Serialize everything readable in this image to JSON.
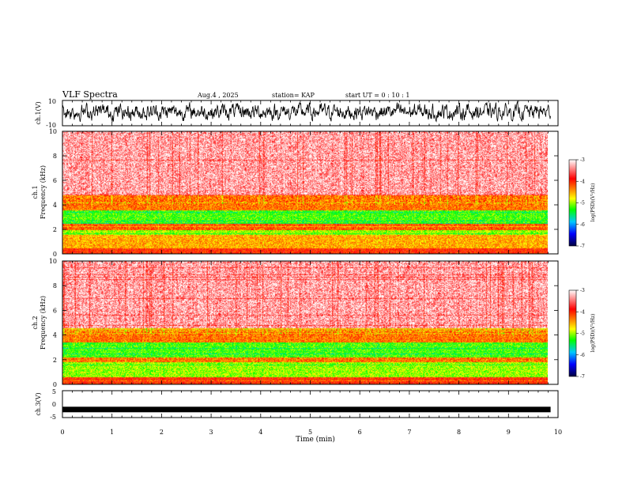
{
  "header": {
    "title": "VLF Spectra",
    "date": "Aug.4 , 2025",
    "station": "station= KAP",
    "start_ut": "start UT = 0 : 10 : 1"
  },
  "colors": {
    "spectrogram_high": "#ff2a2a",
    "spectrogram_mid": "#ff8000",
    "spectrogram_yellow": "#f4e21c",
    "spectrogram_green": "#34e63a",
    "trace": "#000000"
  },
  "chart_data": [
    {
      "type": "line",
      "name": "ch1-waveform",
      "ylabel": "ch.1(V)",
      "ylim": [
        -10,
        10
      ],
      "yticks": [
        "10",
        "-10"
      ],
      "xlim": [
        0,
        10
      ],
      "description_values": "noisy waveform oscillating approximately between -6 and 8 V"
    },
    {
      "type": "heatmap",
      "name": "ch1-spectrogram",
      "ylabel_top": "ch.1",
      "ylabel": "Frequency (kHz)",
      "ylim": [
        0,
        10
      ],
      "yticks": [
        "0",
        "2",
        "4",
        "6",
        "8",
        "10"
      ],
      "xlim": [
        0,
        10
      ],
      "data_end_min": 9.85,
      "colorbar": {
        "label": "log(PSD)(V²/Hz)",
        "range": [
          -7,
          -3
        ],
        "ticks": [
          "-3",
          "-4",
          "-5",
          "-6",
          "-7"
        ]
      },
      "bands": [
        {
          "from_khz": 0.0,
          "to_khz": 0.5,
          "log_psd": -4.0
        },
        {
          "from_khz": 0.5,
          "to_khz": 1.6,
          "log_psd": -4.5
        },
        {
          "from_khz": 1.6,
          "to_khz": 2.0,
          "log_psd": -5.0
        },
        {
          "from_khz": 2.0,
          "to_khz": 2.5,
          "log_psd": -4.2
        },
        {
          "from_khz": 2.5,
          "to_khz": 3.6,
          "log_psd": -5.2
        },
        {
          "from_khz": 3.6,
          "to_khz": 4.8,
          "log_psd": -4.3
        },
        {
          "from_khz": 4.8,
          "to_khz": 10.0,
          "log_psd": -3.3
        }
      ]
    },
    {
      "type": "heatmap",
      "name": "ch2-spectrogram",
      "ylabel_top": "ch.2",
      "ylabel": "Frequency (kHz)",
      "ylim": [
        0,
        10
      ],
      "yticks": [
        "0",
        "2",
        "4",
        "6",
        "8",
        "10"
      ],
      "xlim": [
        0,
        10
      ],
      "data_end_min": 9.85,
      "colorbar": {
        "label": "log(PSD)(V²/Hz)",
        "range": [
          -7,
          -3
        ],
        "ticks": [
          "-3",
          "-4",
          "-5",
          "-6",
          "-7"
        ]
      },
      "bands": [
        {
          "from_khz": 0.0,
          "to_khz": 0.6,
          "log_psd": -4.0
        },
        {
          "from_khz": 0.6,
          "to_khz": 1.8,
          "log_psd": -5.0
        },
        {
          "from_khz": 1.8,
          "to_khz": 2.2,
          "log_psd": -4.3
        },
        {
          "from_khz": 2.2,
          "to_khz": 3.4,
          "log_psd": -5.2
        },
        {
          "from_khz": 3.4,
          "to_khz": 4.6,
          "log_psd": -4.3
        },
        {
          "from_khz": 4.6,
          "to_khz": 10.0,
          "log_psd": -3.3
        }
      ]
    },
    {
      "type": "line",
      "name": "ch3-waveform",
      "ylabel": "ch.3(V)",
      "ylim": [
        -5,
        5
      ],
      "yticks": [
        "5",
        "0",
        "-5"
      ],
      "xlim": [
        0,
        10
      ],
      "description_values": "dense thick band around -2 V"
    }
  ],
  "x_axis": {
    "label": "Time (min)",
    "ticks": [
      "0",
      "1",
      "2",
      "3",
      "4",
      "5",
      "6",
      "7",
      "8",
      "9",
      "10"
    ]
  }
}
